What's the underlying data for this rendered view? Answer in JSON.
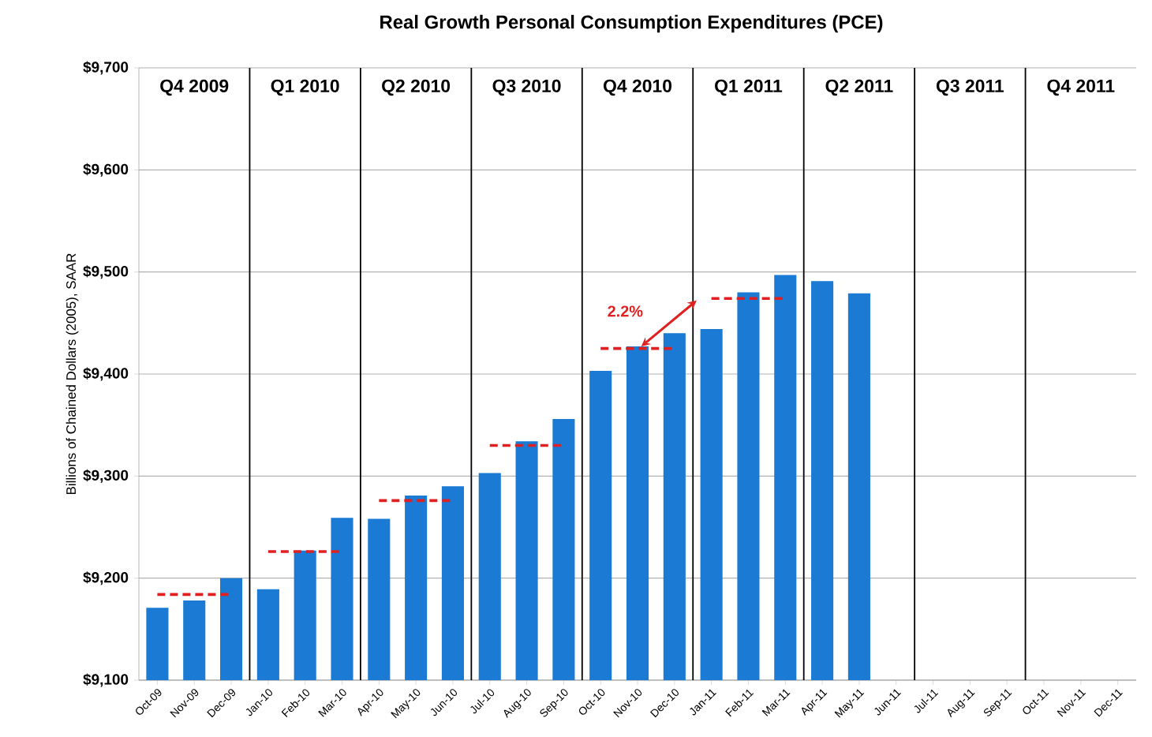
{
  "chart_data": {
    "type": "bar",
    "title": "Real Growth Personal Consumption Expenditures (PCE)",
    "ylabel": "Billions of Chained Dollars (2005), SAAR",
    "categories": [
      "Oct-09",
      "Nov-09",
      "Dec-09",
      "Jan-10",
      "Feb-10",
      "Mar-10",
      "Apr-10",
      "May-10",
      "Jun-10",
      "Jul-10",
      "Aug-10",
      "Sep-10",
      "Oct-10",
      "Nov-10",
      "Dec-10",
      "Jan-11",
      "Feb-11",
      "Mar-11",
      "Apr-11",
      "May-11",
      "Jun-11",
      "Jul-11",
      "Aug-11",
      "Sep-11",
      "Oct-11",
      "Nov-11",
      "Dec-11"
    ],
    "series": [
      {
        "color": "#1a7ad4",
        "values": [
          9171,
          9178,
          9200,
          9189,
          9227,
          9259,
          9258,
          9281,
          9290,
          9303,
          9334,
          9356,
          9403,
          9427,
          9440,
          9444,
          9480,
          9497,
          9491,
          9479,
          null,
          null,
          null,
          null,
          null,
          null,
          null
        ]
      },
      {
        "type": "line",
        "color": "#e02020",
        "line_style": "dashed",
        "values": [
          9184,
          9184,
          9184,
          9226,
          9226,
          9226,
          9276,
          9276,
          9276,
          9330,
          9330,
          9330,
          9425,
          9425,
          9425,
          9474,
          9474,
          9474,
          null,
          null,
          null,
          null,
          null,
          null,
          null,
          null,
          null
        ]
      }
    ],
    "ylim": [
      9100,
      9700
    ],
    "yticks": [
      {
        "value": 9100,
        "label": "$9,100"
      },
      {
        "value": 9200,
        "label": "$9,200"
      },
      {
        "value": 9300,
        "label": "$9,300"
      },
      {
        "value": 9400,
        "label": "$9,400"
      },
      {
        "value": 9500,
        "label": "$9,500"
      },
      {
        "value": 9600,
        "label": "$9,600"
      },
      {
        "value": 9700,
        "label": "$9,700"
      }
    ],
    "grid": "y",
    "annotations": [
      "2.2%",
      "Q4 2009",
      "Q1 2010",
      "Q2 2010",
      "Q3 2010",
      "Q4 2010",
      "Q1 2011",
      "Q2 2011",
      "Q3 2011",
      "Q4 2011"
    ]
  }
}
